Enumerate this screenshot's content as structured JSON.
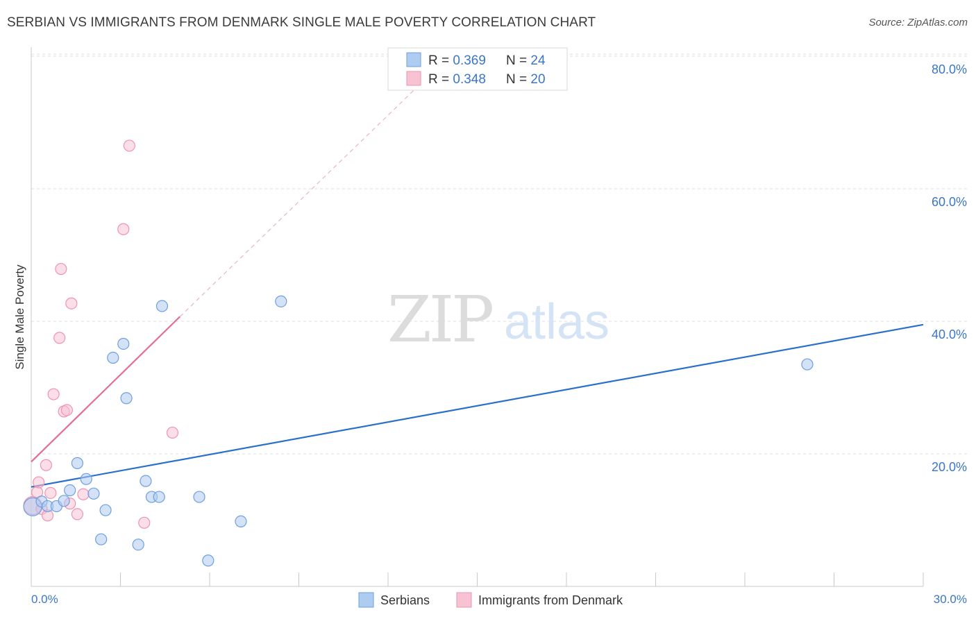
{
  "title": "SERBIAN VS IMMIGRANTS FROM DENMARK SINGLE MALE POVERTY CORRELATION CHART",
  "source": "Source: ZipAtlas.com",
  "watermark": {
    "zip": "ZIP",
    "atlas": "atlas"
  },
  "colors": {
    "serbians_fill": "#aecbf0",
    "serbians_stroke": "#6d9fe0",
    "serbians_line": "#2b6fcc",
    "denmark_fill": "#f7c3d3",
    "denmark_stroke": "#ee93b0",
    "denmark_line": "#e46c95",
    "axis_label": "#3a76c8",
    "grid": "#dddddd"
  },
  "legend_box": [
    {
      "r_label": "R = ",
      "r_value": "0.369",
      "n_label": "N = ",
      "n_value": "24"
    },
    {
      "r_label": "R = ",
      "r_value": "0.348",
      "n_label": "N = ",
      "n_value": "20"
    }
  ],
  "chart_data": {
    "type": "scatter",
    "title": "SERBIAN VS IMMIGRANTS FROM DENMARK SINGLE MALE POVERTY CORRELATION CHART",
    "xlabel": "",
    "ylabel": "Single Male Poverty",
    "xlim": [
      0,
      30
    ],
    "ylim": [
      0,
      82
    ],
    "x_tick_labels": [
      "0.0%",
      "30.0%"
    ],
    "y_ticks": [
      20,
      40,
      60,
      80
    ],
    "y_tick_labels": [
      "20.0%",
      "40.0%",
      "60.0%",
      "80.0%"
    ],
    "grid": true,
    "legend_position": "bottom",
    "series": [
      {
        "name": "Serbians",
        "r": 0.369,
        "n": 24,
        "points": [
          {
            "x": 0.05,
            "y": 12.0,
            "big": true
          },
          {
            "x": 0.35,
            "y": 12.8
          },
          {
            "x": 0.55,
            "y": 12.1
          },
          {
            "x": 0.85,
            "y": 12.1
          },
          {
            "x": 1.1,
            "y": 12.9
          },
          {
            "x": 1.3,
            "y": 14.5
          },
          {
            "x": 1.55,
            "y": 18.6
          },
          {
            "x": 1.85,
            "y": 16.2
          },
          {
            "x": 2.1,
            "y": 14.0
          },
          {
            "x": 2.35,
            "y": 7.1
          },
          {
            "x": 2.5,
            "y": 11.5
          },
          {
            "x": 2.75,
            "y": 34.5
          },
          {
            "x": 3.1,
            "y": 36.6
          },
          {
            "x": 3.2,
            "y": 28.4
          },
          {
            "x": 3.6,
            "y": 6.3
          },
          {
            "x": 3.85,
            "y": 15.9
          },
          {
            "x": 4.05,
            "y": 13.5
          },
          {
            "x": 4.3,
            "y": 13.5
          },
          {
            "x": 4.4,
            "y": 42.3
          },
          {
            "x": 5.65,
            "y": 13.5
          },
          {
            "x": 5.95,
            "y": 3.9
          },
          {
            "x": 7.05,
            "y": 9.8
          },
          {
            "x": 8.4,
            "y": 43.0
          },
          {
            "x": 26.1,
            "y": 33.5
          }
        ],
        "trend": {
          "x0": 0,
          "y0": 15.0,
          "x1": 30,
          "y1": 39.5
        }
      },
      {
        "name": "Immigrants from Denmark",
        "r": 0.348,
        "n": 20,
        "points": [
          {
            "x": 0.05,
            "y": 12.2,
            "big": true
          },
          {
            "x": 0.2,
            "y": 14.2
          },
          {
            "x": 0.25,
            "y": 15.7
          },
          {
            "x": 0.35,
            "y": 11.7
          },
          {
            "x": 0.5,
            "y": 18.3
          },
          {
            "x": 0.55,
            "y": 10.7
          },
          {
            "x": 0.65,
            "y": 14.1
          },
          {
            "x": 0.75,
            "y": 29.0
          },
          {
            "x": 0.95,
            "y": 37.5
          },
          {
            "x": 1.0,
            "y": 47.9
          },
          {
            "x": 1.1,
            "y": 26.4
          },
          {
            "x": 1.2,
            "y": 26.6
          },
          {
            "x": 1.3,
            "y": 12.5
          },
          {
            "x": 1.35,
            "y": 42.7
          },
          {
            "x": 1.55,
            "y": 10.9
          },
          {
            "x": 1.75,
            "y": 13.9
          },
          {
            "x": 3.1,
            "y": 53.9
          },
          {
            "x": 3.3,
            "y": 66.5
          },
          {
            "x": 3.8,
            "y": 9.6
          },
          {
            "x": 4.75,
            "y": 23.2
          }
        ],
        "trend": {
          "x0": 0,
          "y0": 18.8,
          "x1": 5.0,
          "y1": 40.7
        },
        "trend_dashed": {
          "x0": 5.0,
          "y0": 40.7,
          "x1": 13.2,
          "y1": 76.3
        }
      }
    ]
  }
}
